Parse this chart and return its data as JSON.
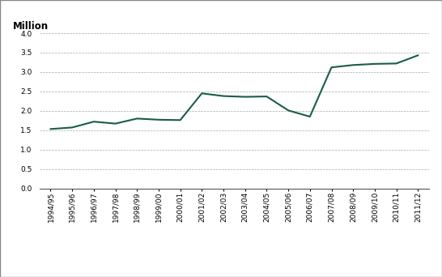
{
  "x_labels": [
    "1994/95",
    "1995/96",
    "1996/97",
    "1997/98",
    "1998/99",
    "1999/00",
    "2000/01",
    "2001/02",
    "2002/03",
    "2003/04",
    "2004/05",
    "2005/06",
    "2006/07",
    "2007/08",
    "2008/09",
    "2009/10",
    "2010/11",
    "2011/12"
  ],
  "y_values": [
    1.53,
    1.57,
    1.72,
    1.67,
    1.8,
    1.77,
    1.76,
    2.45,
    2.38,
    2.36,
    2.37,
    2.01,
    1.85,
    3.12,
    3.18,
    3.21,
    3.22,
    3.43
  ],
  "line_color": "#1a5e44",
  "line_width": 1.5,
  "ylabel": "Million",
  "ylim": [
    0.0,
    4.0
  ],
  "yticks": [
    0.0,
    0.5,
    1.0,
    1.5,
    2.0,
    2.5,
    3.0,
    3.5,
    4.0
  ],
  "grid_color": "#aaaaaa",
  "bg_color": "#ffffff",
  "border_color": "#888888",
  "tick_label_fontsize": 6.5,
  "ylabel_fontsize": 8.5
}
